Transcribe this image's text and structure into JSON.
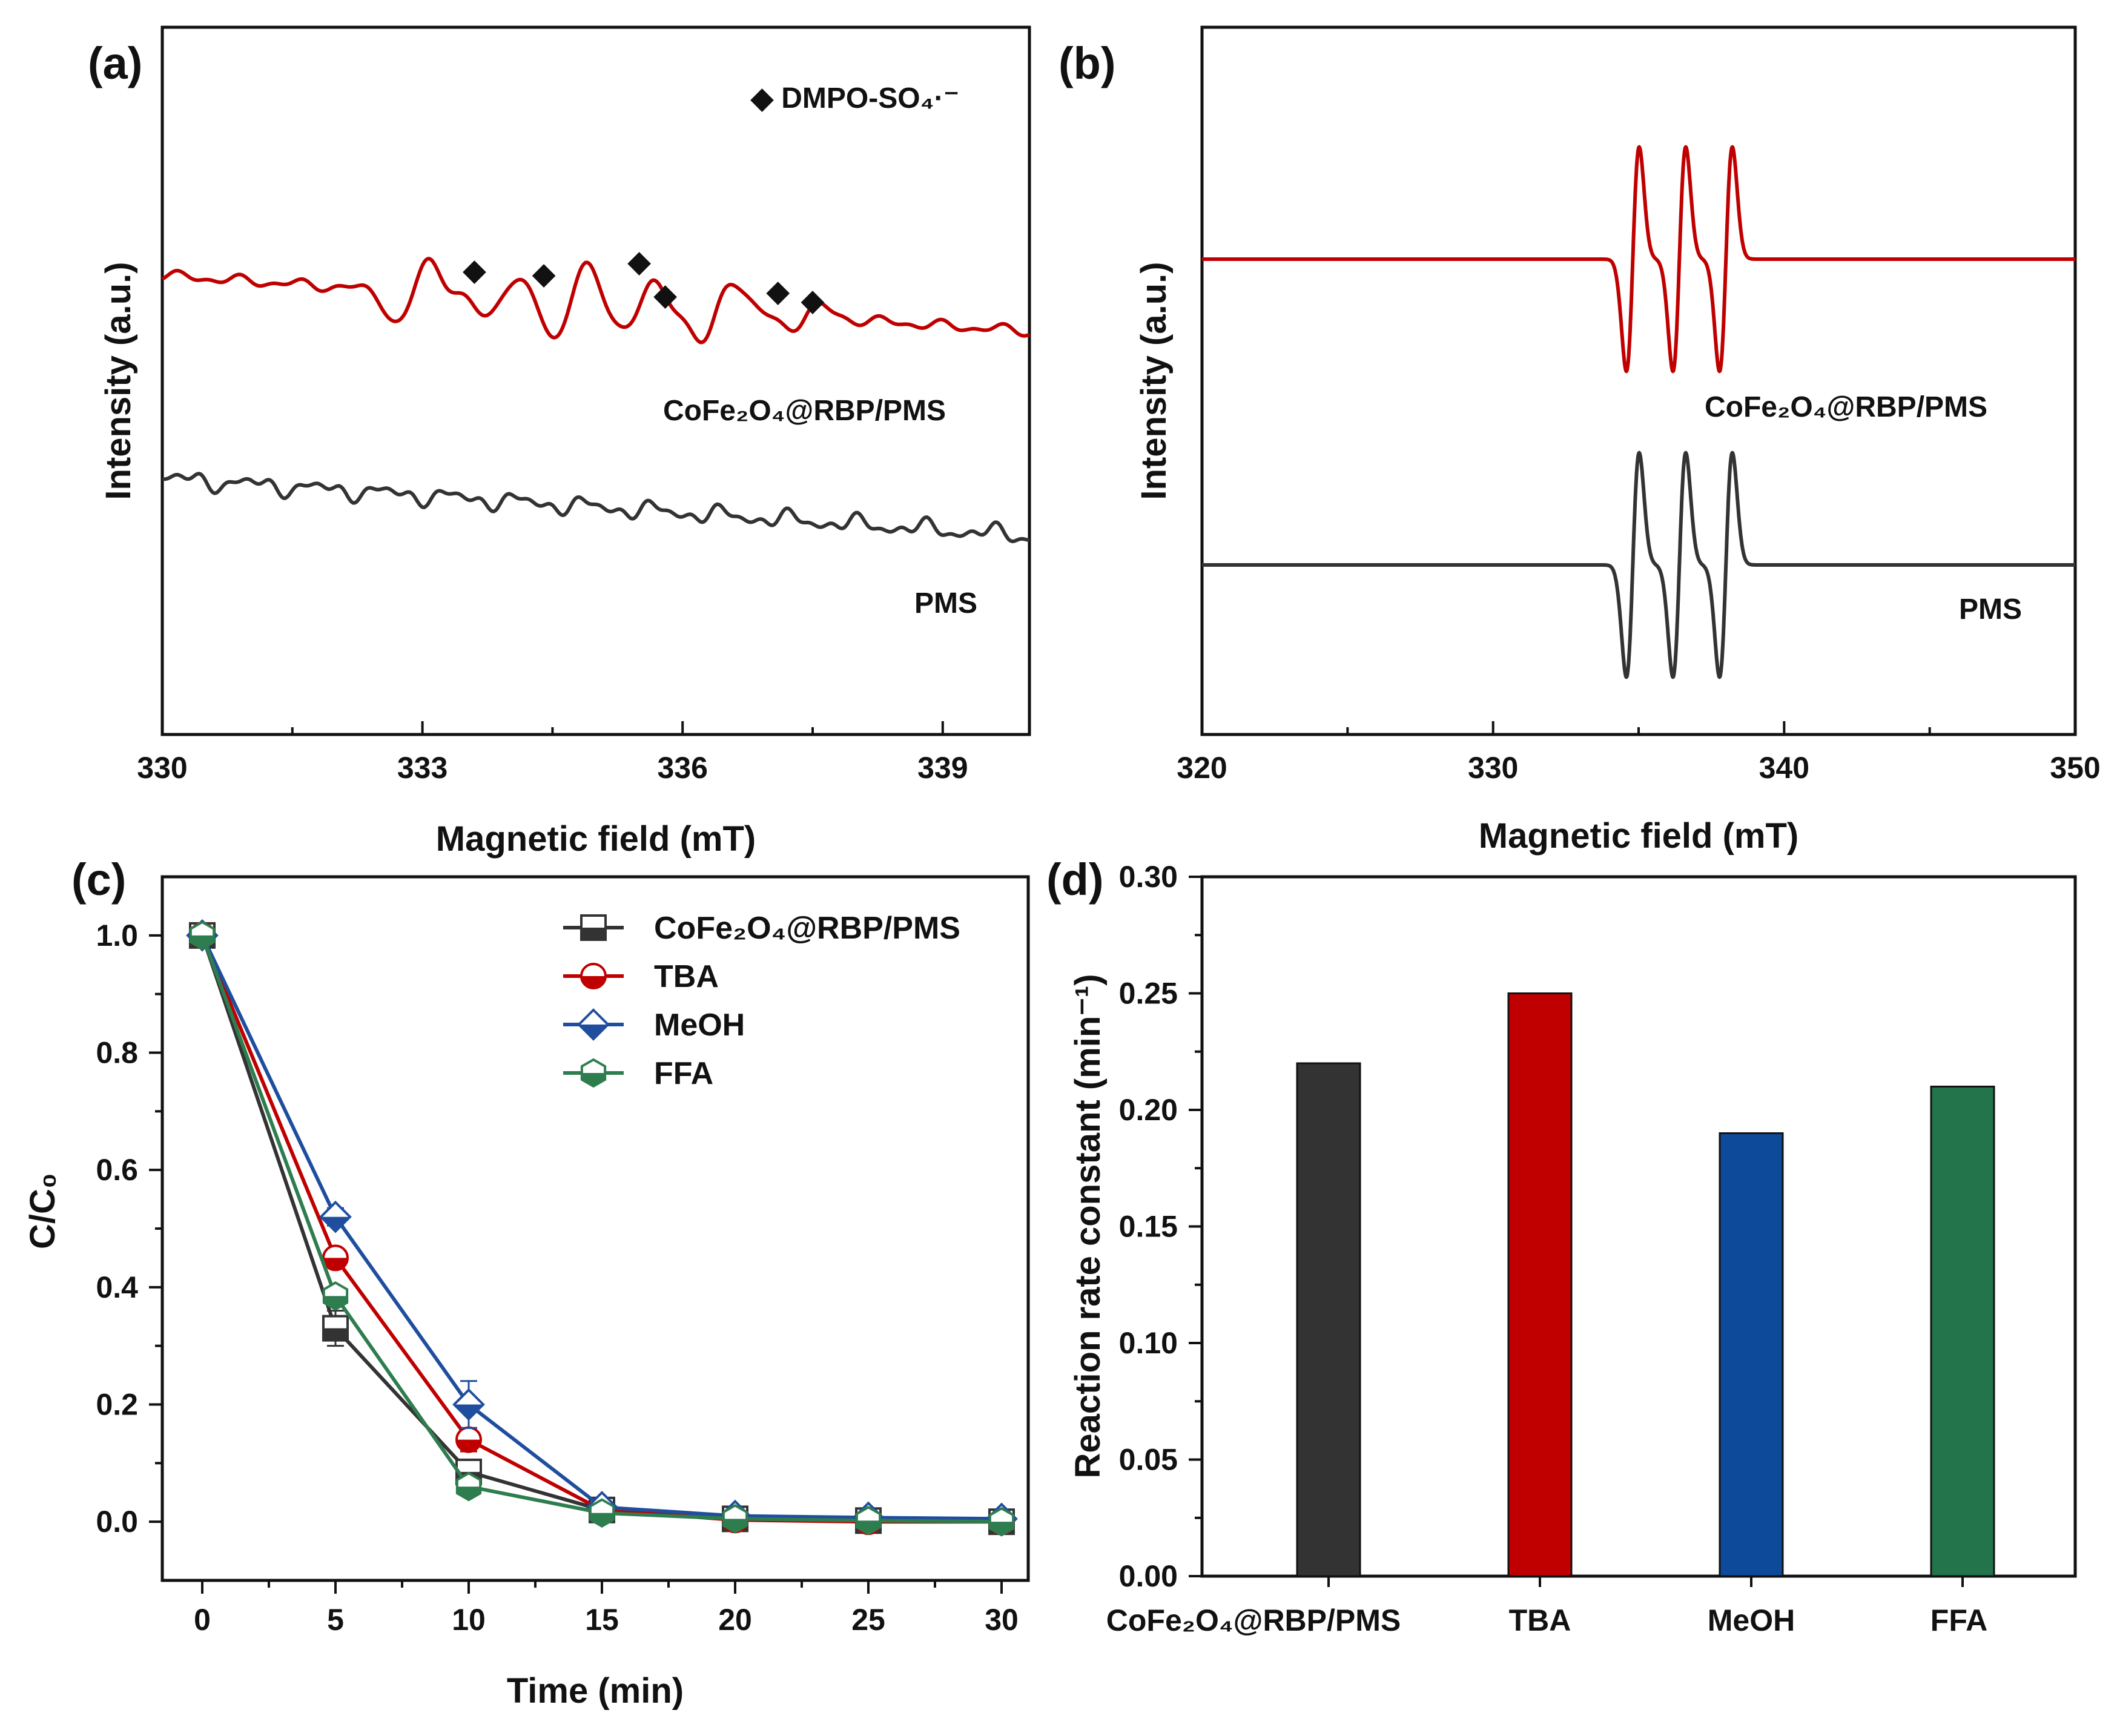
{
  "chart_data": [
    {
      "panel": "(a)",
      "type": "line",
      "title": "",
      "xlabel": "Magnetic field (mT)",
      "ylabel": "Intensity (a.u.)",
      "xlim": [
        330,
        340
      ],
      "xticks": [
        "330",
        "333",
        "336",
        "339"
      ],
      "xtick_values": [
        330,
        333,
        336,
        339
      ],
      "annotation": "◆ DMPO-SO₄·⁻",
      "marker_symbol": "◆",
      "marker_fields": [
        333.6,
        334.4,
        335.5,
        335.8,
        337.1,
        337.5
      ],
      "series": [
        {
          "name": "CoFe₂O₄@RBP/PMS",
          "color": "#C00000",
          "kind": "esr_sulfate_noisy"
        },
        {
          "name": "PMS",
          "color": "#333333",
          "kind": "noise_baseline"
        }
      ]
    },
    {
      "panel": "(b)",
      "type": "line",
      "title": "",
      "xlabel": "Magnetic field (mT)",
      "ylabel": "Intensity (a.u.)",
      "xlim": [
        320,
        350
      ],
      "xticks": [
        "320",
        "330",
        "340",
        "350"
      ],
      "xtick_values": [
        320,
        330,
        340,
        350
      ],
      "series": [
        {
          "name": "CoFe₂O₄@RBP/PMS",
          "color": "#C00000",
          "kind": "esr_triplet",
          "peak_centers": [
            334.8,
            336.4,
            338.0
          ]
        },
        {
          "name": "PMS",
          "color": "#333333",
          "kind": "esr_triplet",
          "peak_centers": [
            334.8,
            336.4,
            338.0
          ]
        }
      ]
    },
    {
      "panel": "(c)",
      "type": "line",
      "title": "",
      "xlabel": "Time (min)",
      "ylabel": "C/C₀",
      "xlim": [
        -1.5,
        31
      ],
      "ylim": [
        -0.1,
        1.1
      ],
      "x": [
        0,
        5,
        10,
        15,
        20,
        25,
        30
      ],
      "xticks": [
        "0",
        "5",
        "10",
        "15",
        "20",
        "25",
        "30"
      ],
      "xtick_values": [
        0,
        5,
        10,
        15,
        20,
        25,
        30
      ],
      "yticks": [
        "0.0",
        "0.2",
        "0.4",
        "0.6",
        "0.8",
        "1.0"
      ],
      "ytick_values": [
        0,
        0.2,
        0.4,
        0.6,
        0.8,
        1.0
      ],
      "legend_position": "top-right",
      "series": [
        {
          "name": "CoFe₂O₄@RBP/PMS",
          "color": "#333333",
          "marker": "square",
          "values": [
            1.0,
            0.33,
            0.085,
            0.02,
            0.005,
            0.002,
            0.0
          ],
          "errors": [
            0,
            0.03,
            0.015,
            0.01,
            0.005,
            0.005,
            0.005
          ]
        },
        {
          "name": "TBA",
          "color": "#C00000",
          "marker": "circle",
          "values": [
            1.0,
            0.45,
            0.14,
            0.02,
            0.003,
            0.0,
            0.0
          ],
          "errors": [
            0,
            0.015,
            0.02,
            0.005,
            0.005,
            0.005,
            0.005
          ]
        },
        {
          "name": "MeOH",
          "color": "#1F4E9E",
          "marker": "diamond",
          "values": [
            1.0,
            0.52,
            0.2,
            0.025,
            0.01,
            0.007,
            0.005
          ],
          "errors": [
            0,
            0.015,
            0.04,
            0.005,
            0.005,
            0.005,
            0.005
          ]
        },
        {
          "name": "FFA",
          "color": "#2E7D4F",
          "marker": "hexagon",
          "values": [
            1.0,
            0.385,
            0.06,
            0.015,
            0.005,
            0.002,
            0.0
          ],
          "errors": [
            0,
            0.01,
            0.01,
            0.005,
            0.005,
            0.005,
            0.005
          ]
        }
      ]
    },
    {
      "panel": "(d)",
      "type": "bar",
      "title": "",
      "xlabel": "",
      "ylabel": "Reaction rate constant (min⁻¹)",
      "ylim": [
        0,
        0.3
      ],
      "yticks": [
        "0.00",
        "0.05",
        "0.10",
        "0.15",
        "0.20",
        "0.25",
        "0.30"
      ],
      "ytick_values": [
        0,
        0.05,
        0.1,
        0.15,
        0.2,
        0.25,
        0.3
      ],
      "categories": [
        "CoFe₂O₄@RBP/PMS",
        "TBA",
        "MeOH",
        "FFA"
      ],
      "values": [
        0.22,
        0.25,
        0.19,
        0.21
      ],
      "colors": [
        "#333333",
        "#C00000",
        "#0E4A9A",
        "#23744A"
      ]
    }
  ]
}
